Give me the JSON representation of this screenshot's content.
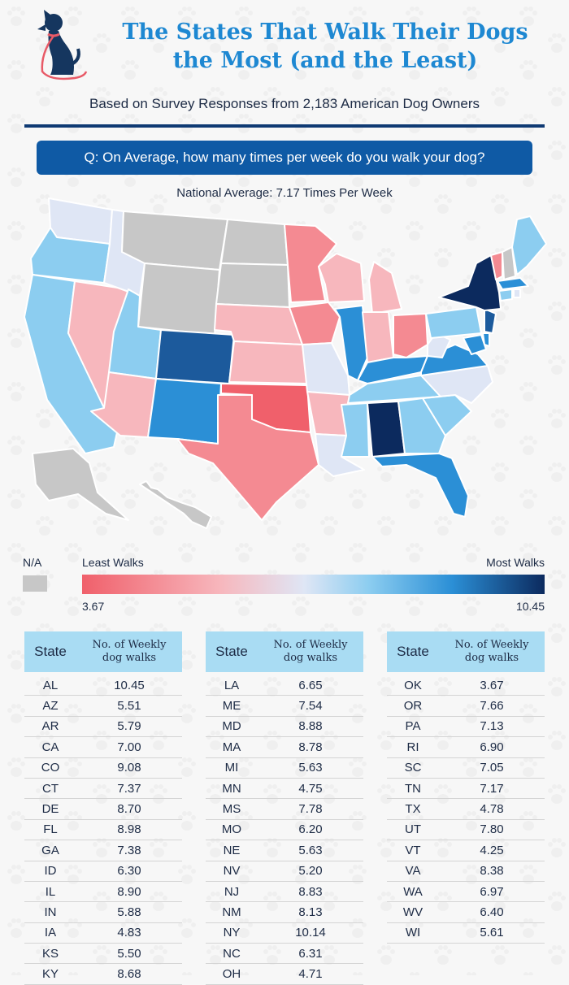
{
  "header": {
    "title_line1": "The States That Walk Their Dogs",
    "title_line2": "the Most (and the Least)",
    "subtitle": "Based on Survey Responses from 2,183 American Dog Owners",
    "question": "Q: On Average, how many times per week do you walk your dog?",
    "national_average": "National Average: 7.17 Times Per Week"
  },
  "legend": {
    "na_label": "N/A",
    "least_label": "Least Walks",
    "most_label": "Most Walks",
    "min_value": "3.67",
    "max_value": "10.45",
    "na_color": "#c7c7c7",
    "gradient_colors": [
      "#f0606b",
      "#f7b7bd",
      "#dfe6f5",
      "#8ccdf0",
      "#2b8fd6",
      "#0c2a5e"
    ]
  },
  "tables": {
    "state_header": "State",
    "value_header_line1": "No. of Weekly",
    "value_header_line2": "dog walks"
  },
  "chart_data": {
    "type": "table",
    "title": "The States That Walk Their Dogs the Most (and the Least)",
    "columns": [
      "State",
      "No. of Weekly dog walks"
    ],
    "rows": [
      [
        "AL",
        "10.45"
      ],
      [
        "AZ",
        "5.51"
      ],
      [
        "AR",
        "5.79"
      ],
      [
        "CA",
        "7.00"
      ],
      [
        "CO",
        "9.08"
      ],
      [
        "CT",
        "7.37"
      ],
      [
        "DE",
        "8.70"
      ],
      [
        "FL",
        "8.98"
      ],
      [
        "GA",
        "7.38"
      ],
      [
        "ID",
        "6.30"
      ],
      [
        "IL",
        "8.90"
      ],
      [
        "IN",
        "5.88"
      ],
      [
        "IA",
        "4.83"
      ],
      [
        "KS",
        "5.50"
      ],
      [
        "KY",
        "8.68"
      ],
      [
        "LA",
        "6.65"
      ],
      [
        "ME",
        "7.54"
      ],
      [
        "MD",
        "8.88"
      ],
      [
        "MA",
        "8.78"
      ],
      [
        "MI",
        "5.63"
      ],
      [
        "MN",
        "4.75"
      ],
      [
        "MS",
        "7.78"
      ],
      [
        "MO",
        "6.20"
      ],
      [
        "NE",
        "5.63"
      ],
      [
        "NV",
        "5.20"
      ],
      [
        "NJ",
        "8.83"
      ],
      [
        "NM",
        "8.13"
      ],
      [
        "NY",
        "10.14"
      ],
      [
        "NC",
        "6.31"
      ],
      [
        "OH",
        "4.71"
      ],
      [
        "OK",
        "3.67"
      ],
      [
        "OR",
        "7.66"
      ],
      [
        "PA",
        "7.13"
      ],
      [
        "RI",
        "6.90"
      ],
      [
        "SC",
        "7.05"
      ],
      [
        "TN",
        "7.17"
      ],
      [
        "TX",
        "4.78"
      ],
      [
        "UT",
        "7.80"
      ],
      [
        "VT",
        "4.25"
      ],
      [
        "VA",
        "8.38"
      ],
      [
        "WA",
        "6.97"
      ],
      [
        "WV",
        "6.40"
      ],
      [
        "WI",
        "5.61"
      ]
    ],
    "na_states": [
      "MT",
      "ND",
      "SD",
      "WY",
      "AK",
      "HI",
      "NH"
    ]
  }
}
